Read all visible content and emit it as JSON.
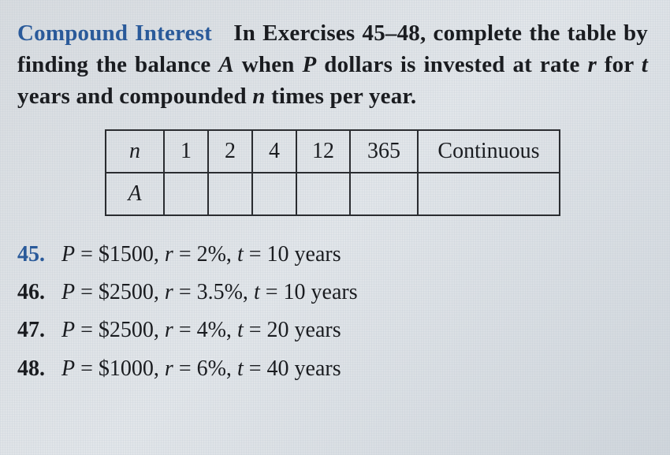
{
  "header": {
    "topic": "Compound Interest",
    "text_before_vars": "In Exercises 45–48, complete the table by finding the balance",
    "A": "A",
    "mid1": "when",
    "P": "P",
    "mid2": "dollars is invested at rate",
    "r": "r",
    "mid3": "for",
    "t": "t",
    "mid4": "years and compounded",
    "n": "n",
    "mid5": "times per year."
  },
  "table": {
    "row_header_n": "n",
    "row_header_A": "A",
    "cols": {
      "c1": "1",
      "c2": "2",
      "c3": "4",
      "c4": "12",
      "c5": "365",
      "c6": "Continuous"
    }
  },
  "problems": {
    "p45": {
      "num": "45.",
      "P": "P",
      "Pval": "= $1500,",
      "r": "r",
      "rval": "= 2%,",
      "t": "t",
      "tval": "= 10 years"
    },
    "p46": {
      "num": "46.",
      "P": "P",
      "Pval": "= $2500,",
      "r": "r",
      "rval": "= 3.5%,",
      "t": "t",
      "tval": "= 10 years"
    },
    "p47": {
      "num": "47.",
      "P": "P",
      "Pval": "= $2500,",
      "r": "r",
      "rval": "= 4%,",
      "t": "t",
      "tval": "= 20 years"
    },
    "p48": {
      "num": "48.",
      "P": "P",
      "Pval": "= $1000,",
      "r": "r",
      "rval": "= 6%,",
      "t": "t",
      "tval": "= 40 years"
    }
  },
  "colors": {
    "accent": "#2a5a9a",
    "text": "#1a1c20",
    "border": "#2a2c30"
  }
}
